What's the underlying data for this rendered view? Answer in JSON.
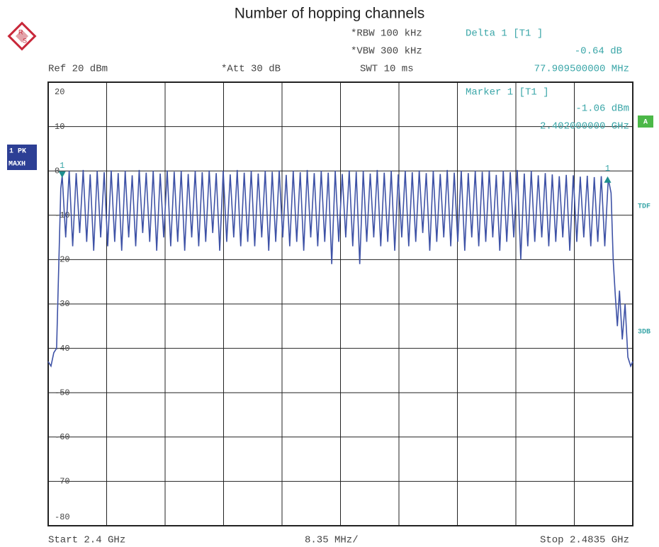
{
  "chart_data": {
    "type": "line",
    "title": "Number of hopping channels",
    "header": {
      "rbw": "*RBW 100 kHz",
      "vbw": "*VBW 300 kHz",
      "ref": "Ref 20 dBm",
      "att": "*Att 30 dB",
      "swt": "SWT 10 ms",
      "delta": "Delta 1 [T1 ]",
      "delta_level": "-0.64 dB",
      "delta_freq": "77.909500000 MHz",
      "marker": "Marker 1 [T1 ]",
      "marker_level": "-1.06 dBm",
      "marker_freq": "2.402000000 GHz"
    },
    "footer": {
      "start": "Start 2.4 GHz",
      "span": "8.35 MHz/",
      "stop": "Stop 2.4835 GHz"
    },
    "side": {
      "trace_mode": "1 PK",
      "detector": "MAXH",
      "a": "A",
      "tdf": "TDF",
      "db3": "3DB"
    },
    "color": "#3e52a6",
    "xlim": [
      2.4,
      2.4835
    ],
    "ylim": [
      -80,
      20
    ],
    "yticks": [
      20,
      10,
      0,
      -10,
      -20,
      -30,
      -40,
      -50,
      -60,
      -70,
      -80
    ],
    "grid": true,
    "markers": [
      {
        "label": "1",
        "x": 2.402,
        "y": -1.06,
        "dir": "down"
      },
      {
        "label": "1",
        "x": 2.4799095,
        "y": -1.7,
        "dir": "up"
      }
    ],
    "x": [
      2.4,
      2.4004,
      2.4008,
      2.4012,
      2.4015,
      2.4018,
      2.402,
      2.4025,
      2.403,
      2.4035,
      2.404,
      2.4045,
      2.405,
      2.4055,
      2.406,
      2.4065,
      2.407,
      2.4075,
      2.408,
      2.4085,
      2.409,
      2.4095,
      2.41,
      2.4105,
      2.411,
      2.4115,
      2.412,
      2.4125,
      2.413,
      2.4135,
      2.414,
      2.4145,
      2.415,
      2.4155,
      2.416,
      2.4165,
      2.417,
      2.4175,
      2.418,
      2.4185,
      2.419,
      2.4195,
      2.42,
      2.4205,
      2.421,
      2.4215,
      2.422,
      2.4225,
      2.423,
      2.4235,
      2.424,
      2.4245,
      2.425,
      2.4255,
      2.426,
      2.4265,
      2.427,
      2.4275,
      2.428,
      2.4285,
      2.429,
      2.4295,
      2.43,
      2.4305,
      2.431,
      2.4315,
      2.432,
      2.4325,
      2.433,
      2.4335,
      2.434,
      2.4345,
      2.435,
      2.4355,
      2.436,
      2.4365,
      2.437,
      2.4375,
      2.438,
      2.4385,
      2.439,
      2.4395,
      2.44,
      2.4405,
      2.441,
      2.4415,
      2.442,
      2.4425,
      2.443,
      2.4435,
      2.444,
      2.4445,
      2.445,
      2.4455,
      2.446,
      2.4465,
      2.447,
      2.4475,
      2.448,
      2.4485,
      2.449,
      2.4495,
      2.45,
      2.4505,
      2.451,
      2.4515,
      2.452,
      2.4525,
      2.453,
      2.4535,
      2.454,
      2.4545,
      2.455,
      2.4555,
      2.456,
      2.4565,
      2.457,
      2.4575,
      2.458,
      2.4585,
      2.459,
      2.4595,
      2.46,
      2.4605,
      2.461,
      2.4615,
      2.462,
      2.4625,
      2.463,
      2.4635,
      2.464,
      2.4645,
      2.465,
      2.4655,
      2.466,
      2.4665,
      2.467,
      2.4675,
      2.468,
      2.4685,
      2.469,
      2.4695,
      2.47,
      2.4705,
      2.471,
      2.4715,
      2.472,
      2.4725,
      2.473,
      2.4735,
      2.474,
      2.4745,
      2.475,
      2.4755,
      2.476,
      2.4765,
      2.477,
      2.4775,
      2.478,
      2.4785,
      2.479,
      2.4795,
      2.48,
      2.4804,
      2.4807,
      2.481,
      2.4813,
      2.4816,
      2.482,
      2.4824,
      2.4828,
      2.4832,
      2.4835
    ],
    "values": [
      -43,
      -44,
      -41,
      -40,
      -22,
      -4,
      -1.06,
      -15,
      0,
      -17,
      -0.5,
      -14,
      0.2,
      -16,
      -0.8,
      -18,
      0,
      -15,
      -0.3,
      -17,
      0.1,
      -16,
      -0.5,
      -18,
      0,
      -15,
      -1,
      -17,
      0.2,
      -14,
      -0.4,
      -16,
      0,
      -18,
      -0.6,
      -15,
      0.1,
      -17,
      -0.2,
      -16,
      0,
      -18,
      -0.7,
      -15,
      0,
      -17,
      -0.3,
      -16,
      0.1,
      -14,
      -0.5,
      -18,
      0,
      -16,
      -0.8,
      -15,
      0.2,
      -17,
      -0.4,
      -16,
      0,
      -17,
      -0.6,
      -15,
      0,
      -18,
      -0.2,
      -16,
      0.1,
      -15,
      -0.9,
      -17,
      0,
      -16,
      -0.3,
      -18,
      0.2,
      -15,
      -0.5,
      -17,
      0,
      -16,
      -0.4,
      -21,
      0,
      -16,
      -0.7,
      -15,
      0.1,
      -17,
      -0.2,
      -21,
      0,
      -16,
      -0.6,
      -15,
      0.2,
      -17,
      -0.4,
      -16,
      0,
      -18,
      -0.8,
      -15,
      0,
      -17,
      -0.3,
      -16,
      0.1,
      -14,
      -0.5,
      -18,
      0,
      -16,
      -0.7,
      -15,
      0.2,
      -17,
      -0.4,
      -16,
      0,
      -18,
      -0.5,
      -15,
      0,
      -17,
      -0.2,
      -16,
      0.1,
      -15,
      -0.9,
      -18,
      0,
      -16,
      -0.3,
      -15,
      0.2,
      -20,
      -0.6,
      -17,
      0,
      -16,
      -1,
      -15,
      -0.5,
      -17,
      -0.8,
      -16,
      -1.2,
      -15,
      -0.9,
      -18,
      -1,
      -16,
      -1.3,
      -15,
      -1.1,
      -17,
      -1.4,
      -16,
      -1.2,
      -17,
      -1.7,
      -5,
      -20,
      -28,
      -35,
      -27,
      -38,
      -30,
      -42,
      -44,
      -43
    ]
  }
}
